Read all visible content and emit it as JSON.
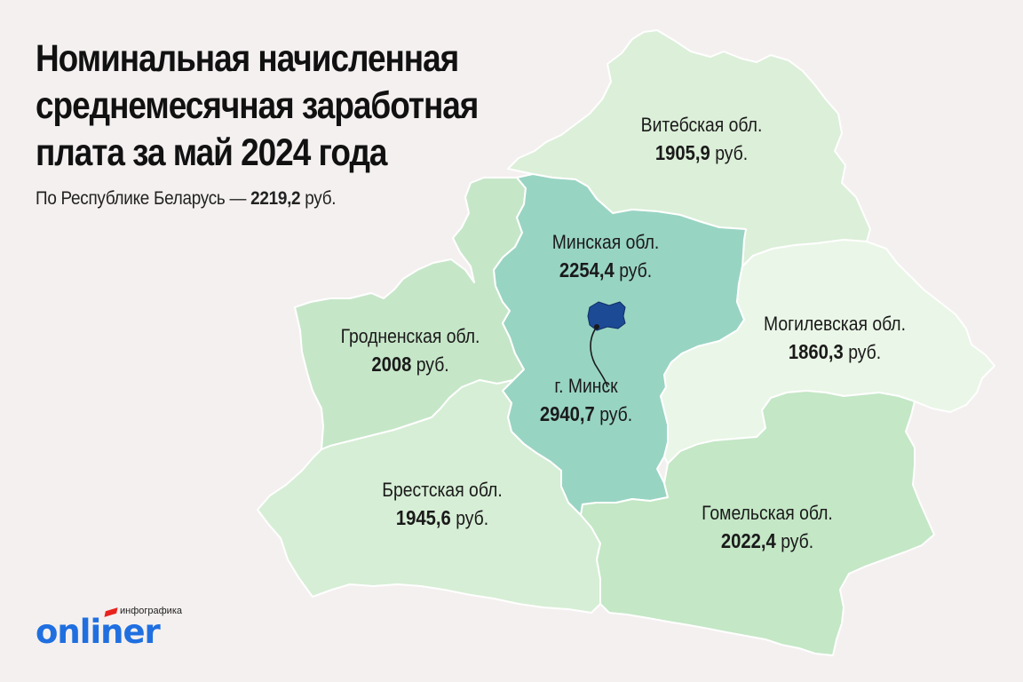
{
  "title": "Номинальная начисленная среднемесячная заработная плата за май 2024 года",
  "subtitle": {
    "prefix": "По Республике Беларусь — ",
    "value": "2219,2",
    "unit": " руб."
  },
  "unit": "руб.",
  "regions": [
    {
      "id": "vitebsk",
      "name": "Витебская обл.",
      "value": "1905,9",
      "fill": "#dcefd9"
    },
    {
      "id": "minsk-oblast",
      "name": "Минская обл.",
      "value": "2254,4",
      "fill": "#98d4c2"
    },
    {
      "id": "grodno",
      "name": "Гродненская обл.",
      "value": "2008",
      "fill": "#c6e6c8"
    },
    {
      "id": "mogilev",
      "name": "Могилевская обл.",
      "value": "1860,3",
      "fill": "#eaf6e7"
    },
    {
      "id": "minsk-city",
      "name": "г. Минск",
      "value": "2940,7",
      "fill": "#1c4a94"
    },
    {
      "id": "brest",
      "name": "Брестская обл.",
      "value": "1945,6",
      "fill": "#d6eed5"
    },
    {
      "id": "gomel",
      "name": "Гомельская обл.",
      "value": "2022,4",
      "fill": "#c4e7c6"
    }
  ],
  "brand": {
    "logo_word": "onliner",
    "tag": "инфографика",
    "color": "#1f6fe0",
    "accent": "#e8231e"
  }
}
